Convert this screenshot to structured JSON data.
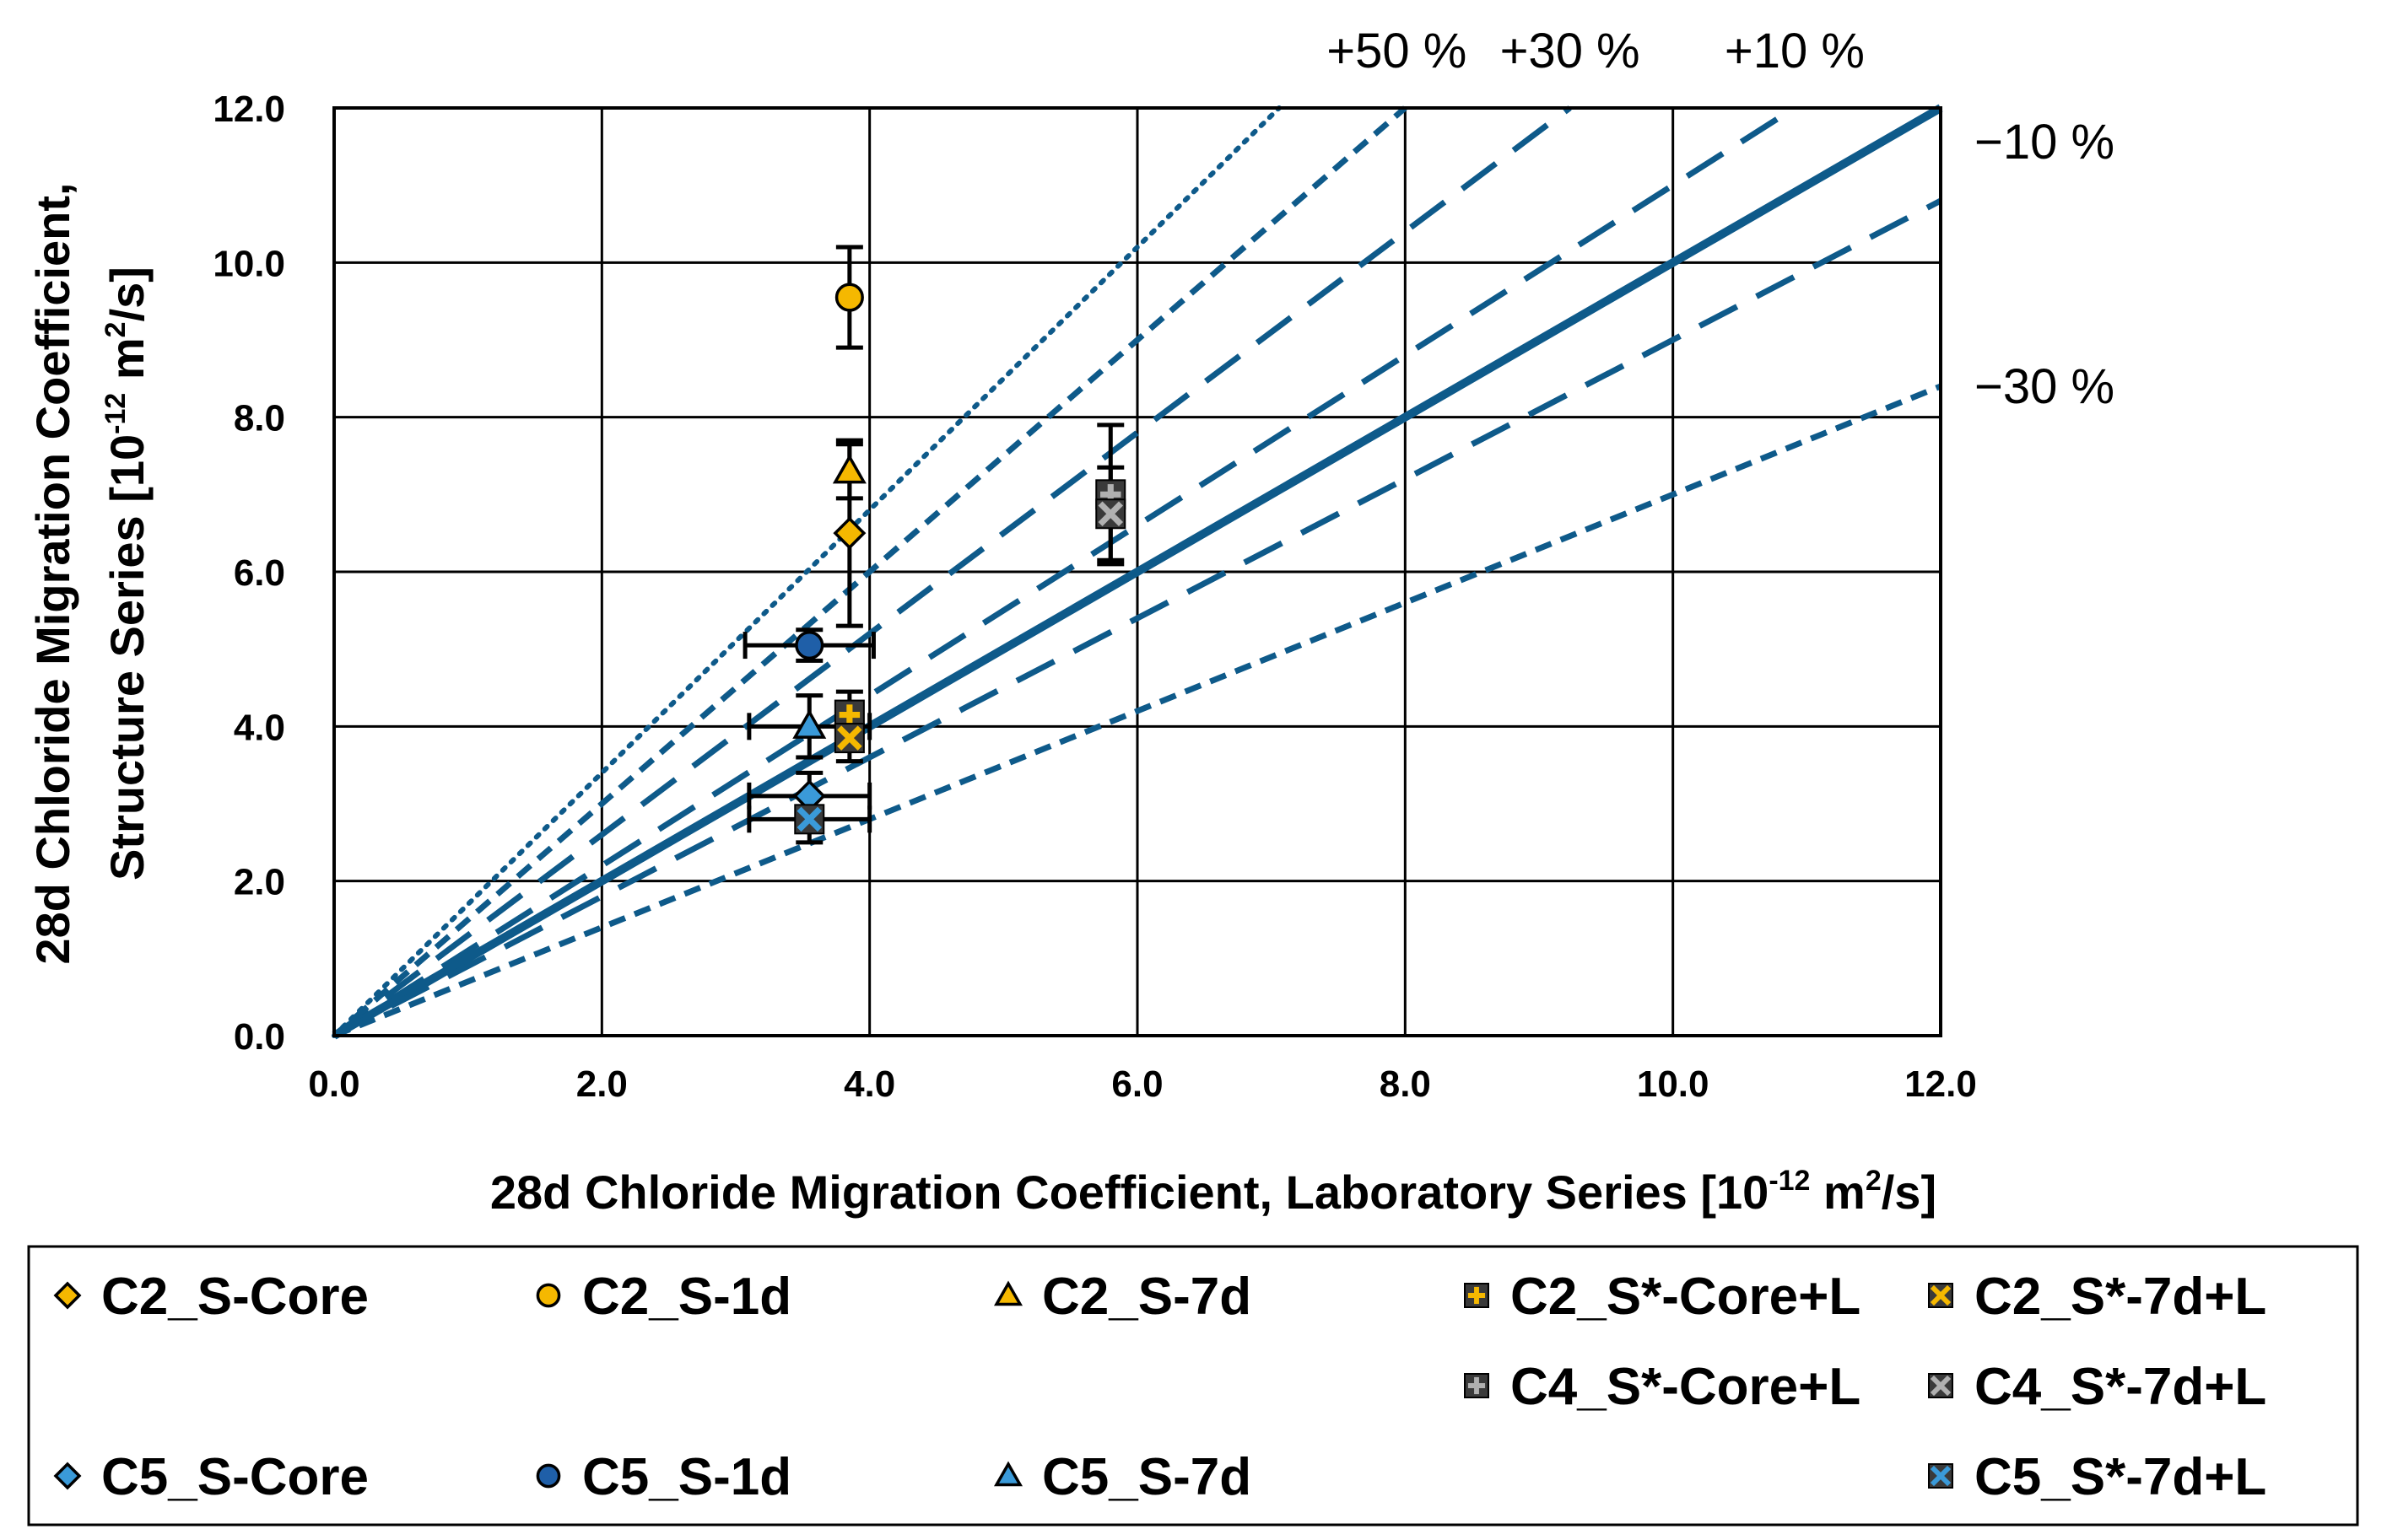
{
  "chart_data": {
    "type": "scatter",
    "title": "",
    "xlabel": "28d Chloride Migration Coefficient, Laboratory Series [10",
    "xlabel_sup": "-12",
    "xlabel_unit": " m",
    "xlabel_sup2": "2",
    "xlabel_end": "/s]",
    "ylabel_line1": "28d Chloride Migration Coefficient,",
    "ylabel_line2": "Structure Series [10",
    "ylabel_sup": "-12",
    "ylabel_unit": " m",
    "ylabel_sup2": "2",
    "ylabel_end": "/s]",
    "xlim": [
      0,
      12
    ],
    "ylim": [
      0,
      12
    ],
    "x_ticks": [
      "0.0",
      "2.0",
      "4.0",
      "6.0",
      "8.0",
      "10.0",
      "12.0"
    ],
    "y_ticks": [
      "0.0",
      "2.0",
      "4.0",
      "6.0",
      "8.0",
      "10.0",
      "12.0"
    ],
    "grid": true,
    "colors": {
      "line": "#0e5a8a",
      "yellow": "#f5b800",
      "gray": "#b0b0b0",
      "lightblue": "#3a9ad9",
      "darkblue": "#1f5fa8"
    },
    "reference_lines": [
      {
        "label": "",
        "factor": 1.7,
        "style": "dotted"
      },
      {
        "label": "+50 %",
        "factor": 1.5,
        "style": "short-dash"
      },
      {
        "label": "+30 %",
        "factor": 1.3,
        "style": "long-dash"
      },
      {
        "label": "+10 %",
        "factor": 1.1,
        "style": "long-dash"
      },
      {
        "label": "",
        "factor": 1.0,
        "style": "solid"
      },
      {
        "label": "−10 %",
        "factor": 0.9,
        "style": "long-dash"
      },
      {
        "label": "−30 %",
        "factor": 0.7,
        "style": "short-dash"
      }
    ],
    "series": [
      {
        "name": "C2_S-Core",
        "marker": "diamond",
        "color": "yellow",
        "x": 3.85,
        "y": 6.5,
        "x_err": 0.0,
        "y_err": 1.2
      },
      {
        "name": "C2_S-1d",
        "marker": "circle",
        "color": "yellow",
        "x": 3.85,
        "y": 9.55,
        "x_err": 0.0,
        "y_err": 0.65
      },
      {
        "name": "C2_S-7d",
        "marker": "triangle",
        "color": "yellow",
        "x": 3.85,
        "y": 7.3,
        "x_err": 0.0,
        "y_err": 0.35
      },
      {
        "name": "C2_S*-Core+L",
        "marker": "plus",
        "color": "yellow",
        "x": 3.85,
        "y": 4.15,
        "x_err": 0.0,
        "y_err": 0.3
      },
      {
        "name": "C2_S*-7d+L",
        "marker": "x",
        "color": "yellow",
        "x": 3.85,
        "y": 3.85,
        "x_err": 0.0,
        "y_err": 0.3
      },
      {
        "name": "C4_S*-Core+L",
        "marker": "plus",
        "color": "gray",
        "x": 5.8,
        "y": 7.0,
        "x_err": 0.0,
        "y_err": 0.9
      },
      {
        "name": "C4_S*-7d+L",
        "marker": "x",
        "color": "gray",
        "x": 5.8,
        "y": 6.75,
        "x_err": 0.0,
        "y_err": 0.6
      },
      {
        "name": "C5_S-Core",
        "marker": "diamond",
        "color": "lightblue",
        "x": 3.55,
        "y": 3.1,
        "x_err": 0.45,
        "y_err": 0.3
      },
      {
        "name": "C5_S-1d",
        "marker": "circle",
        "color": "darkblue",
        "x": 3.55,
        "y": 5.05,
        "x_err": 0.48,
        "y_err": 0.2
      },
      {
        "name": "C5_S-7d",
        "marker": "triangle",
        "color": "lightblue",
        "x": 3.55,
        "y": 4.0,
        "x_err": 0.45,
        "y_err": 0.4
      },
      {
        "name": "C5_S*-7d+L",
        "marker": "x",
        "color": "lightblue",
        "x": 3.55,
        "y": 2.8,
        "x_err": 0.45,
        "y_err": 0.3
      }
    ],
    "legend": {
      "position": "bottom",
      "rows": [
        [
          "C2_S-Core",
          "C2_S-1d",
          "C2_S-7d",
          "C2_S*-Core+L",
          "C2_S*-7d+L"
        ],
        [
          "",
          "",
          "",
          "C4_S*-Core+L",
          "C4_S*-7d+L"
        ],
        [
          "C5_S-Core",
          "C5_S-1d",
          "C5_S-7d",
          "",
          "C5_S*-7d+L"
        ]
      ]
    }
  }
}
